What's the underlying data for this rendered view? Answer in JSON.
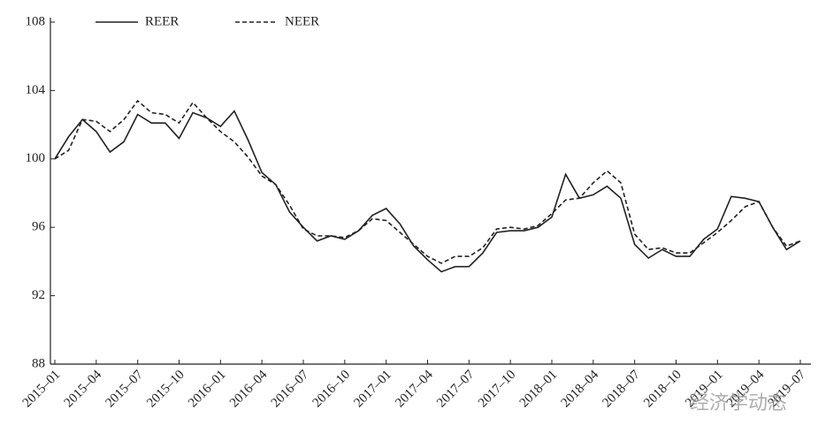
{
  "chart_data": {
    "type": "line",
    "categories": [
      "2015–01",
      null,
      null,
      "2015–04",
      null,
      null,
      "2015–07",
      null,
      null,
      "2015–10",
      null,
      null,
      "2016–01",
      null,
      null,
      "2016–04",
      null,
      null,
      "2016–07",
      null,
      null,
      "2016–10",
      null,
      null,
      "2017–01",
      null,
      null,
      "2017–04",
      null,
      null,
      "2017–07",
      null,
      null,
      "2017–10",
      null,
      null,
      "2018–01",
      null,
      null,
      "2018–04",
      null,
      null,
      "2018–07",
      null,
      null,
      "2018–10",
      null,
      null,
      "2019–01",
      null,
      null,
      "2019–04",
      null,
      null,
      "2019–07"
    ],
    "series": [
      {
        "name": "REER",
        "color": "#222222",
        "dash": false,
        "values": [
          100.0,
          101.3,
          102.3,
          101.6,
          100.4,
          101.0,
          102.6,
          102.1,
          102.1,
          101.2,
          102.7,
          102.4,
          101.9,
          102.8,
          101.1,
          99.2,
          98.5,
          96.9,
          96.0,
          95.2,
          95.5,
          95.3,
          95.8,
          96.7,
          97.1,
          96.2,
          94.9,
          94.1,
          93.4,
          93.7,
          93.7,
          94.5,
          95.7,
          95.8,
          95.8,
          96.0,
          96.6,
          99.1,
          97.7,
          97.9,
          98.4,
          97.7,
          95.0,
          94.2,
          94.7,
          94.3,
          94.3,
          95.3,
          95.9,
          97.8,
          97.7,
          97.5,
          96.0,
          94.7,
          95.2
        ]
      },
      {
        "name": "NEER",
        "color": "#222222",
        "dash": true,
        "values": [
          100.0,
          100.5,
          102.3,
          102.2,
          101.6,
          102.3,
          103.4,
          102.7,
          102.6,
          102.1,
          103.3,
          102.4,
          101.6,
          101.0,
          100.1,
          99.0,
          98.5,
          97.3,
          95.9,
          95.5,
          95.5,
          95.4,
          95.8,
          96.5,
          96.4,
          95.7,
          95.0,
          94.3,
          93.9,
          94.3,
          94.3,
          94.8,
          95.9,
          96.0,
          95.9,
          96.1,
          96.8,
          97.6,
          97.7,
          98.6,
          99.3,
          98.6,
          95.6,
          94.7,
          94.8,
          94.5,
          94.5,
          95.1,
          95.7,
          96.4,
          97.2,
          97.5,
          96.0,
          94.9,
          95.2
        ]
      }
    ],
    "ylim": [
      88,
      108
    ],
    "yticks": [
      88,
      92,
      96,
      100,
      104,
      108
    ],
    "watermark": "经济学动态"
  }
}
